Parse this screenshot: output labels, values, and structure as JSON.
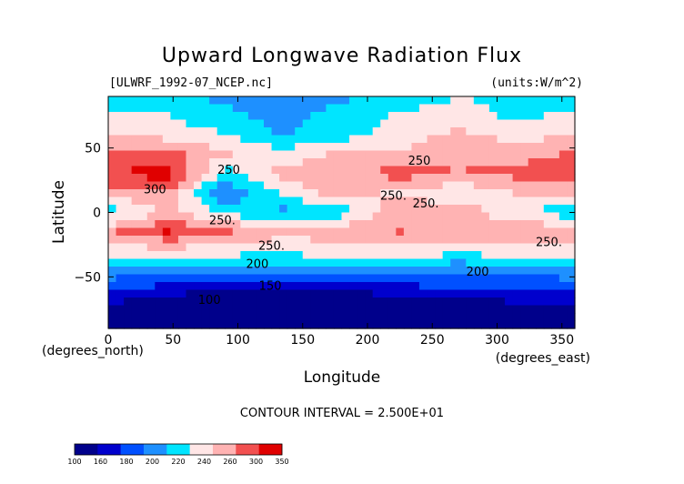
{
  "chart_data": {
    "type": "heatmap",
    "title": "Upward Longwave Radiation Flux",
    "source_label": "[ULWRF_1992-07_NCEP.nc]",
    "units_label": "(units:W/m^2)",
    "xlabel": "Longitude",
    "ylabel": "Latitude",
    "x_unit_label": "(degrees_east)",
    "y_unit_label": "(degrees_north)",
    "xlim": [
      0,
      360
    ],
    "ylim": [
      -90,
      90
    ],
    "x_ticks": [
      0,
      50,
      100,
      150,
      200,
      250,
      300,
      350
    ],
    "y_ticks": [
      50,
      0,
      -50
    ],
    "contour_interval_text": "CONTOUR INTERVAL = 2.500E+01",
    "colorbar": {
      "levels": [
        100,
        160,
        180,
        200,
        220,
        240,
        260,
        280,
        300,
        350
      ],
      "level_labels": [
        "100",
        "160",
        "180",
        "200",
        "220",
        "240",
        "260",
        "300",
        "350"
      ],
      "colors": [
        "#00008b",
        "#0000cd",
        "#0050ff",
        "#1e90ff",
        "#00e5ff",
        "#ffe6e6",
        "#ffb3b3",
        "#f25050",
        "#e00000"
      ]
    },
    "contour_labels": [
      {
        "text": "250",
        "lon": 93,
        "lat": 30
      },
      {
        "text": "300",
        "lon": 36,
        "lat": 15
      },
      {
        "text": "250",
        "lon": 240,
        "lat": 37
      },
      {
        "text": "250.",
        "lon": 220,
        "lat": 10
      },
      {
        "text": "250.",
        "lon": 245,
        "lat": 4
      },
      {
        "text": "250.",
        "lon": 88,
        "lat": -9
      },
      {
        "text": "250.",
        "lon": 126,
        "lat": -29
      },
      {
        "text": "250.",
        "lon": 340,
        "lat": -26
      },
      {
        "text": "200",
        "lon": 115,
        "lat": -43
      },
      {
        "text": "200",
        "lon": 285,
        "lat": -49
      },
      {
        "text": "150",
        "lon": 125,
        "lat": -60
      },
      {
        "text": "100",
        "lon": 78,
        "lat": -71
      }
    ],
    "regional_flux_estimates": [
      {
        "lat": 90,
        "lon": [
          0,
          45,
          90,
          135,
          180,
          225,
          270,
          315,
          360
        ],
        "values": [
          230,
          225,
          215,
          210,
          215,
          228,
          240,
          232,
          230
        ]
      },
      {
        "lat": 75,
        "lon": [
          0,
          45,
          90,
          135,
          180,
          225,
          270,
          315,
          360
        ],
        "values": [
          245,
          240,
          225,
          212,
          230,
          242,
          250,
          235,
          245
        ]
      },
      {
        "lat": 60,
        "lon": [
          0,
          45,
          90,
          135,
          180,
          225,
          270,
          315,
          360
        ],
        "values": [
          262,
          252,
          242,
          218,
          232,
          248,
          266,
          250,
          262
        ]
      },
      {
        "lat": 45,
        "lon": [
          0,
          45,
          90,
          135,
          180,
          225,
          270,
          315,
          360
        ],
        "values": [
          282,
          290,
          262,
          248,
          264,
          262,
          278,
          272,
          282
        ]
      },
      {
        "lat": 30,
        "lon": [
          0,
          45,
          90,
          135,
          180,
          225,
          270,
          315,
          360
        ],
        "values": [
          298,
          312,
          232,
          270,
          275,
          288,
          280,
          285,
          298
        ]
      },
      {
        "lat": 15,
        "lon": [
          0,
          45,
          90,
          135,
          180,
          225,
          270,
          315,
          360
        ],
        "values": [
          268,
          278,
          200,
          245,
          268,
          255,
          240,
          262,
          268
        ]
      },
      {
        "lat": 0,
        "lon": [
          0,
          45,
          90,
          135,
          180,
          225,
          270,
          315,
          360
        ],
        "values": [
          228,
          262,
          240,
          212,
          230,
          278,
          275,
          240,
          228
        ]
      },
      {
        "lat": -15,
        "lon": [
          0,
          45,
          90,
          135,
          180,
          225,
          270,
          315,
          360
        ],
        "values": [
          278,
          302,
          282,
          265,
          272,
          280,
          270,
          276,
          278
        ]
      },
      {
        "lat": -30,
        "lon": [
          0,
          45,
          90,
          135,
          180,
          225,
          270,
          315,
          360
        ],
        "values": [
          250,
          252,
          248,
          246,
          250,
          252,
          248,
          250,
          250
        ]
      },
      {
        "lat": -45,
        "lon": [
          0,
          45,
          90,
          135,
          180,
          225,
          270,
          315,
          360
        ],
        "values": [
          215,
          212,
          210,
          208,
          212,
          214,
          200,
          212,
          215
        ]
      },
      {
        "lat": -60,
        "lon": [
          0,
          45,
          90,
          135,
          180,
          225,
          270,
          315,
          360
        ],
        "values": [
          180,
          170,
          160,
          158,
          162,
          170,
          178,
          176,
          180
        ]
      },
      {
        "lat": -75,
        "lon": [
          0,
          45,
          90,
          135,
          180,
          225,
          270,
          315,
          360
        ],
        "values": [
          150,
          140,
          125,
          130,
          138,
          135,
          145,
          150,
          150
        ]
      },
      {
        "lat": -90,
        "lon": [
          0,
          45,
          90,
          135,
          180,
          225,
          270,
          315,
          360
        ],
        "values": [
          130,
          128,
          125,
          126,
          128,
          130,
          132,
          130,
          130
        ]
      }
    ],
    "grid": false
  }
}
